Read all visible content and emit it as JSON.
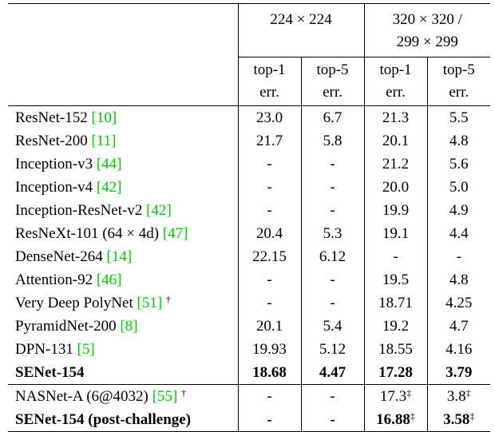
{
  "header": {
    "group1": "224 × 224",
    "group2_line1": "320 × 320 /",
    "group2_line2": "299 × 299",
    "sub_top1_line1": "top-1",
    "sub_top1_line2": "err.",
    "sub_top5_line1": "top-5",
    "sub_top5_line2": "err."
  },
  "rows": [
    {
      "name": "ResNet-152 ",
      "ref": "[10]",
      "mark": "",
      "v": [
        "23.0",
        "6.7",
        "21.3",
        "5.5"
      ],
      "m": [
        "",
        "",
        "",
        ""
      ],
      "bold": false
    },
    {
      "name": "ResNet-200 ",
      "ref": "[11]",
      "mark": "",
      "v": [
        "21.7",
        "5.8",
        "20.1",
        "4.8"
      ],
      "m": [
        "",
        "",
        "",
        ""
      ],
      "bold": false
    },
    {
      "name": "Inception-v3 ",
      "ref": "[44]",
      "mark": "",
      "v": [
        "-",
        "-",
        "21.2",
        "5.6"
      ],
      "m": [
        "",
        "",
        "",
        ""
      ],
      "bold": false
    },
    {
      "name": "Inception-v4 ",
      "ref": "[42]",
      "mark": "",
      "v": [
        "-",
        "-",
        "20.0",
        "5.0"
      ],
      "m": [
        "",
        "",
        "",
        ""
      ],
      "bold": false
    },
    {
      "name": "Inception-ResNet-v2 ",
      "ref": "[42]",
      "mark": "",
      "v": [
        "-",
        "-",
        "19.9",
        "4.9"
      ],
      "m": [
        "",
        "",
        "",
        ""
      ],
      "bold": false
    },
    {
      "name": "ResNeXt-101 (64 × 4d) ",
      "ref": "[47]",
      "mark": "",
      "v": [
        "20.4",
        "5.3",
        "19.1",
        "4.4"
      ],
      "m": [
        "",
        "",
        "",
        ""
      ],
      "bold": false
    },
    {
      "name": "DenseNet-264 ",
      "ref": "[14]",
      "mark": "",
      "v": [
        "22.15",
        "6.12",
        "-",
        "-"
      ],
      "m": [
        "",
        "",
        "",
        ""
      ],
      "bold": false
    },
    {
      "name": "Attention-92 ",
      "ref": "[46]",
      "mark": "",
      "v": [
        "-",
        "-",
        "19.5",
        "4.8"
      ],
      "m": [
        "",
        "",
        "",
        ""
      ],
      "bold": false
    },
    {
      "name": "Very Deep PolyNet ",
      "ref": "[51]",
      "mark": "†",
      "v": [
        "-",
        "-",
        "18.71",
        "4.25"
      ],
      "m": [
        "",
        "",
        "",
        ""
      ],
      "bold": false
    },
    {
      "name": "PyramidNet-200 ",
      "ref": "[8]",
      "mark": "",
      "v": [
        "20.1",
        "5.4",
        "19.2",
        "4.7"
      ],
      "m": [
        "",
        "",
        "",
        ""
      ],
      "bold": false
    },
    {
      "name": "DPN-131 ",
      "ref": "[5]",
      "mark": "",
      "v": [
        "19.93",
        "5.12",
        "18.55",
        "4.16"
      ],
      "m": [
        "",
        "",
        "",
        ""
      ],
      "bold": false
    },
    {
      "name": "SENet-154",
      "ref": "",
      "mark": "",
      "v": [
        "18.68",
        "4.47",
        "17.28",
        "3.79"
      ],
      "m": [
        "",
        "",
        "",
        ""
      ],
      "bold": true
    }
  ],
  "extra_rows": [
    {
      "name": "NASNet-A (6@4032) ",
      "ref": "[55]",
      "mark": "†",
      "v": [
        "-",
        "-",
        "17.3",
        "3.8"
      ],
      "m": [
        "",
        "",
        "‡",
        "‡"
      ],
      "bold": false
    },
    {
      "name": "SENet-154 (post-challenge)",
      "ref": "",
      "mark": "",
      "v": [
        "-",
        "-",
        "16.88",
        "3.58"
      ],
      "m": [
        "",
        "",
        "‡",
        "‡"
      ],
      "bold": true
    }
  ]
}
